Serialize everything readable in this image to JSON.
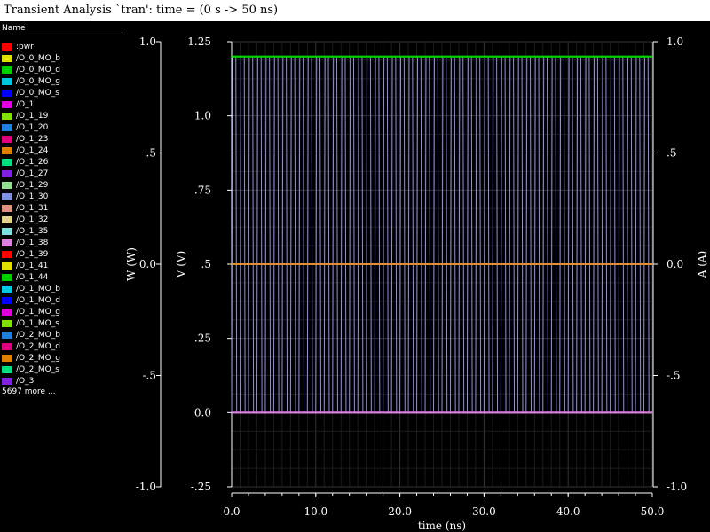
{
  "window": {
    "title": "Transient Analysis `tran': time = (0 s -> 50 ns)"
  },
  "legend": {
    "header": "Name",
    "more": "5697 more ...",
    "items": [
      {
        "label": ":pwr",
        "color": "#ff0000"
      },
      {
        "label": "/O_0_MO_b",
        "color": "#e0e000"
      },
      {
        "label": "/O_0_MO_d",
        "color": "#00d000"
      },
      {
        "label": "/O_0_MO_g",
        "color": "#00c8e0"
      },
      {
        "label": "/O_0_MO_s",
        "color": "#0000ff"
      },
      {
        "label": "/O_1",
        "color": "#e000e0"
      },
      {
        "label": "/O_1_19",
        "color": "#80e000"
      },
      {
        "label": "/O_1_20",
        "color": "#2080e0"
      },
      {
        "label": "/O_1_23",
        "color": "#e00080"
      },
      {
        "label": "/O_1_24",
        "color": "#e08000"
      },
      {
        "label": "/O_1_26",
        "color": "#00e080"
      },
      {
        "label": "/O_1_27",
        "color": "#8020e0"
      },
      {
        "label": "/O_1_29",
        "color": "#90e090"
      },
      {
        "label": "/O_1_30",
        "color": "#8090e0"
      },
      {
        "label": "/O_1_31",
        "color": "#e09080"
      },
      {
        "label": "/O_1_32",
        "color": "#e0d090"
      },
      {
        "label": "/O_1_35",
        "color": "#80e0e0"
      },
      {
        "label": "/O_1_38",
        "color": "#e080e0"
      },
      {
        "label": "/O_1_39",
        "color": "#ff0000"
      },
      {
        "label": "/O_1_41",
        "color": "#e0e000"
      },
      {
        "label": "/O_1_44",
        "color": "#00d000"
      },
      {
        "label": "/O_1_MO_b",
        "color": "#00c8e0"
      },
      {
        "label": "/O_1_MO_d",
        "color": "#0000ff"
      },
      {
        "label": "/O_1_MO_g",
        "color": "#e000e0"
      },
      {
        "label": "/O_1_MO_s",
        "color": "#80e000"
      },
      {
        "label": "/O_2_MO_b",
        "color": "#2080e0"
      },
      {
        "label": "/O_2_MO_d",
        "color": "#e00080"
      },
      {
        "label": "/O_2_MO_g",
        "color": "#e08000"
      },
      {
        "label": "/O_2_MO_s",
        "color": "#00e080"
      },
      {
        "label": "/O_3",
        "color": "#8020e0"
      }
    ]
  },
  "chart_data": {
    "type": "line",
    "xlabel": "time (ns)",
    "x_ticks": [
      "0.0",
      "10.0",
      "20.0",
      "30.0",
      "40.0",
      "50.0"
    ],
    "xlim": [
      0,
      50
    ],
    "axes": [
      {
        "label": "W (W)",
        "ticks": [
          "1.0",
          ".5",
          "0.0",
          "-.5",
          "-1.0"
        ],
        "lim": [
          -1.0,
          1.0
        ]
      },
      {
        "label": "V (V)",
        "ticks": [
          "1.25",
          "1.0",
          ".75",
          ".5",
          ".25",
          "0.0",
          "-.25"
        ],
        "lim": [
          -0.25,
          1.25
        ]
      },
      {
        "label": "A (A)",
        "ticks": [
          "1.0",
          ".5",
          "0.0",
          "-.5",
          "-1.0"
        ],
        "lim": [
          -1.0,
          1.0
        ]
      }
    ],
    "grid": true,
    "series": [
      {
        "color": "#9090e0",
        "kind": "pulse",
        "high": 1.2,
        "low": 0.0,
        "period_ns": 1.0,
        "rise_ns": 0.1
      },
      {
        "color": "#00d000",
        "kind": "constant",
        "value": 1.2
      },
      {
        "color": "#e09030",
        "kind": "constant",
        "value": 0.5
      },
      {
        "color": "#e080e0",
        "kind": "constant",
        "value": 0.0
      }
    ]
  },
  "colors": {
    "background": "#000000",
    "grid": "#2a2a2a",
    "axis": "#ffffff"
  }
}
